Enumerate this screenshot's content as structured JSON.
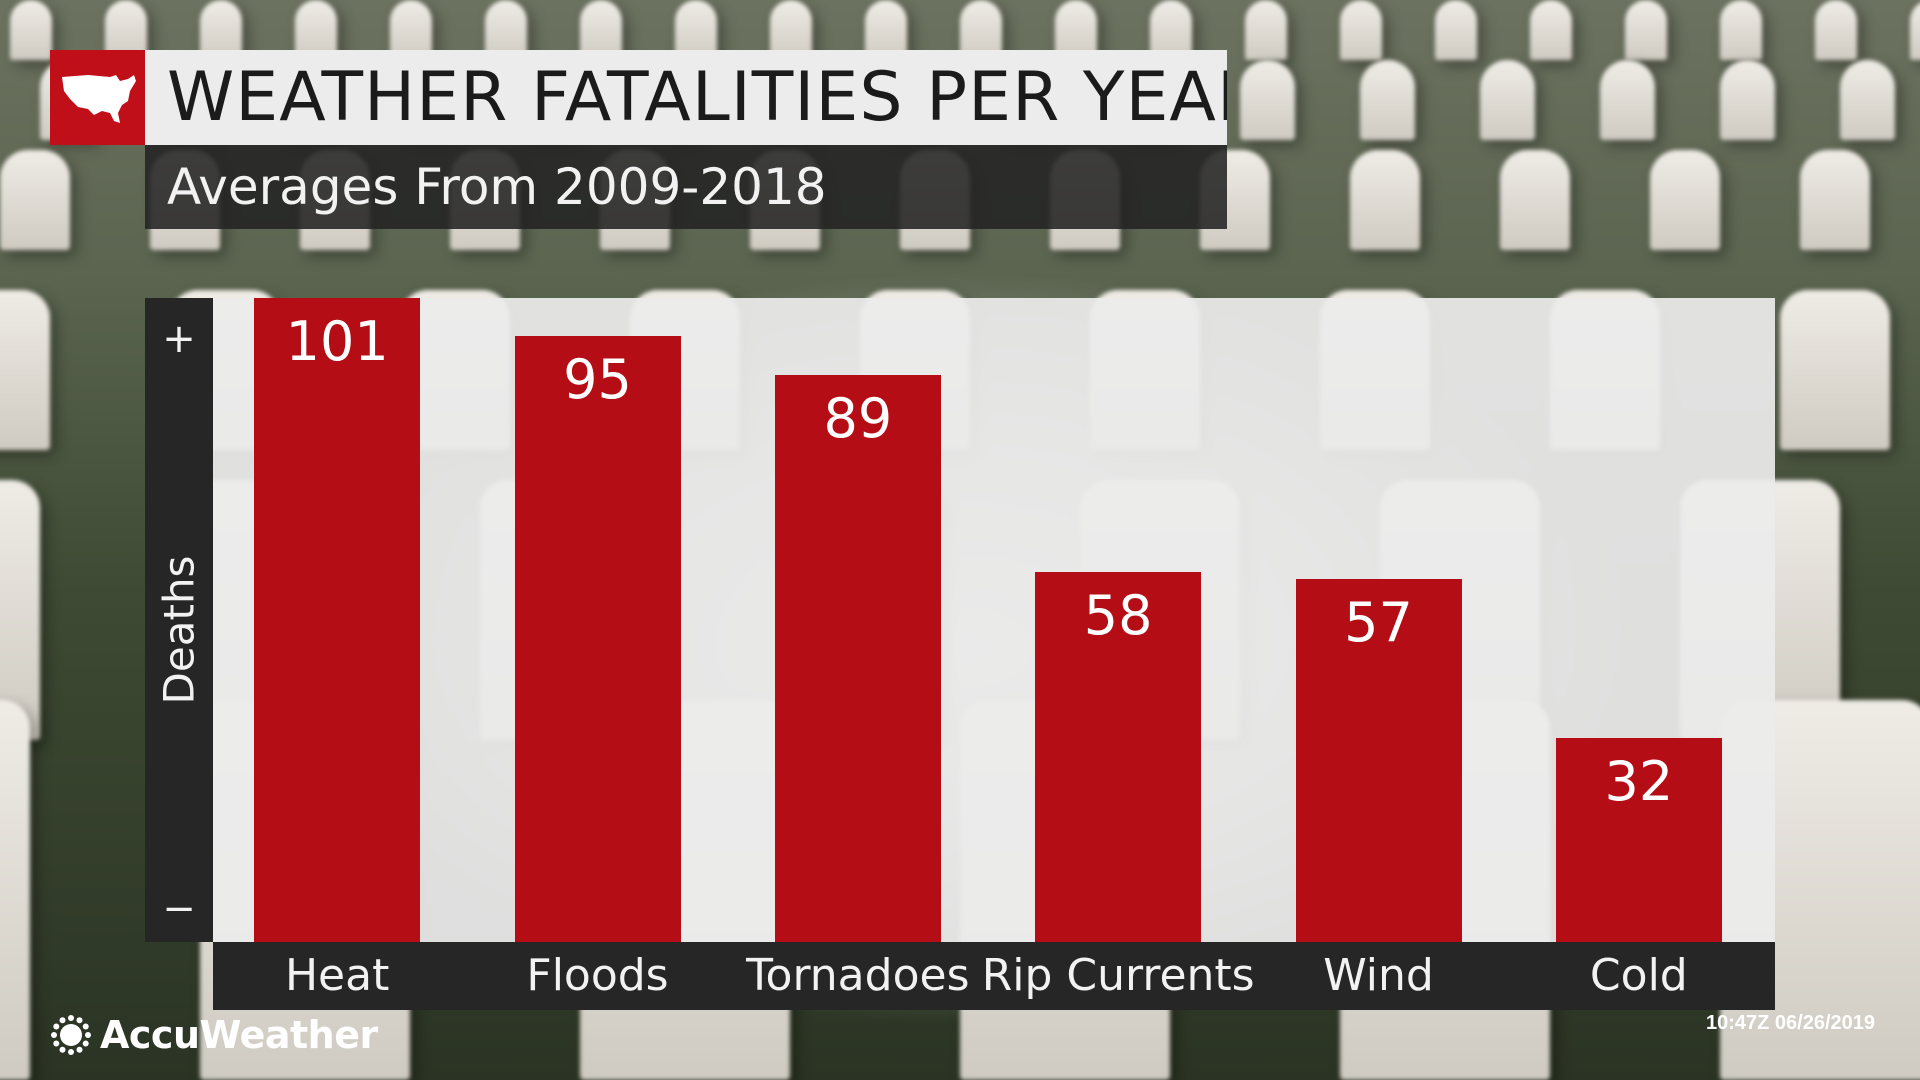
{
  "header": {
    "title": "WEATHER FATALITIES PER YEAR",
    "subtitle": "Averages From 2009-2018",
    "map_icon": "us-map-icon"
  },
  "chart_data": {
    "type": "bar",
    "title": "WEATHER FATALITIES PER YEAR",
    "subtitle": "Averages From 2009-2018",
    "categories": [
      "Heat",
      "Floods",
      "Tornadoes",
      "Rip Currents",
      "Wind",
      "Cold"
    ],
    "values": [
      101,
      95,
      89,
      58,
      57,
      32
    ],
    "ylabel": "Deaths",
    "y_axis_top_marker": "+",
    "y_axis_bottom_marker": "−",
    "ylim": [
      0,
      101
    ],
    "grid": false,
    "bar_color": "#b50d16"
  },
  "footer": {
    "brand": "AccuWeather",
    "brand_icon": "sun-logo-icon",
    "timestamp": "10:47Z 06/26/2019"
  },
  "colors": {
    "accent_red": "#c10f1a",
    "title_bg": "#ececec",
    "dark_panel": "#262626"
  }
}
